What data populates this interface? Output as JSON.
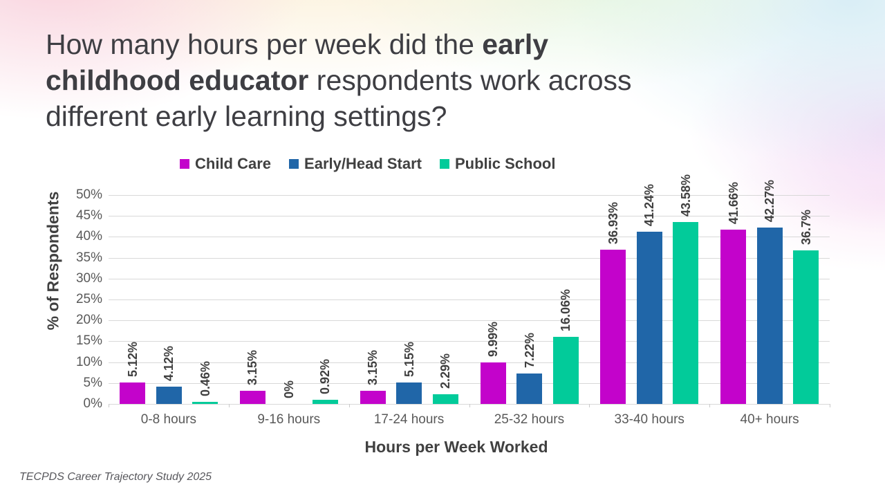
{
  "title": {
    "text": "How many hours per week did the early childhood educator respondents work across different early learning settings?",
    "line1_regular": "How many hours per week did the ",
    "line1_bold": "early",
    "line2_bold": "childhood educator",
    "line2_regular": " respondents work across",
    "line3": "different early learning settings?"
  },
  "legend": [
    {
      "label": "Child Care",
      "color": "#c303cb"
    },
    {
      "label": "Early/Head Start",
      "color": "#2066a8"
    },
    {
      "label": "Public School",
      "color": "#02cb9a"
    }
  ],
  "footnote": "TECPDS Career Trajectory Study 2025",
  "colors": {
    "child_care": "#c303cb",
    "early_head_start": "#2066a8",
    "public_school": "#02cb9a",
    "gridline": "#d8d8d8",
    "axis_text": "#595959",
    "dark_text": "#404040"
  },
  "chart_data": {
    "type": "bar",
    "title": "How many hours per week did the early childhood educator respondents work across different early learning settings?",
    "categories": [
      "0-8 hours",
      "9-16 hours",
      "17-24 hours",
      "25-32 hours",
      "33-40 hours",
      "40+ hours"
    ],
    "series": [
      {
        "name": "Child Care",
        "color": "#c303cb",
        "values": [
          5.12,
          3.15,
          3.15,
          9.99,
          36.93,
          41.66
        ],
        "labels": [
          "5.12%",
          "3.15%",
          "3.15%",
          "9.99%",
          "36.93%",
          "41.66%"
        ]
      },
      {
        "name": "Early/Head Start",
        "color": "#2066a8",
        "values": [
          4.12,
          0,
          5.15,
          7.22,
          41.24,
          42.27
        ],
        "labels": [
          "4.12%",
          "0%",
          "5.15%",
          "7.22%",
          "41.24%",
          "42.27%"
        ]
      },
      {
        "name": "Public School",
        "color": "#02cb9a",
        "values": [
          0.46,
          0.92,
          2.29,
          16.06,
          43.58,
          36.7
        ],
        "labels": [
          "0.46%",
          "0.92%",
          "2.29%",
          "16.06%",
          "43.58%",
          "36.7%"
        ]
      }
    ],
    "xlabel": "Hours per Week Worked",
    "ylabel": "% of Respondents",
    "ylim": [
      0,
      50
    ],
    "yticks": [
      "0%",
      "5%",
      "10%",
      "15%",
      "20%",
      "25%",
      "30%",
      "35%",
      "40%",
      "45%",
      "50%"
    ],
    "grid": true,
    "legend_position": "top",
    "data_label_rotation": -90
  }
}
